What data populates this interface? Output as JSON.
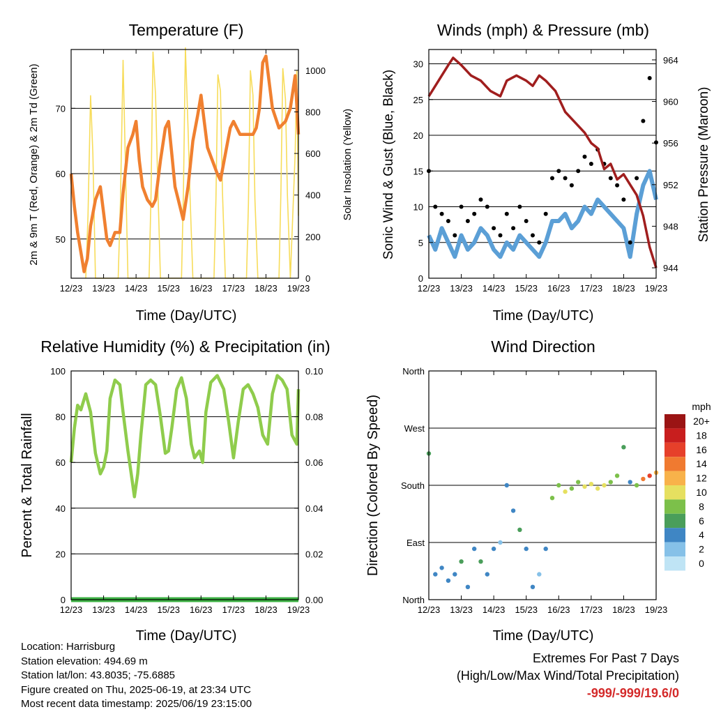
{
  "panels": {
    "temperature": {
      "title": "Temperature (F)",
      "ylabel_left": "2m & 9m T (Red, Orange) & 2m Td (Green)",
      "ylabel_right": "Solar Insolation (Yellow)",
      "xlabel": "Time (Day/UTC)"
    },
    "winds": {
      "title": "Winds (mph) & Pressure (mb)",
      "ylabel_left": "Sonic Wind & Gust (Blue, Black)",
      "ylabel_right": "Station Pressure (Maroon)",
      "xlabel": "Time (Day/UTC)"
    },
    "humidity": {
      "title": "Relative Humidity (%) & Precipitation (in)",
      "ylabel_left": "Percent & Total Rainfall",
      "xlabel": "Time (Day/UTC)"
    },
    "direction": {
      "title": "Wind Direction",
      "ylabel_left": "Direction (Colored By Speed)",
      "xlabel": "Time (Day/UTC)",
      "colorbar_title": "mph"
    }
  },
  "info": {
    "location": "Location: Harrisburg",
    "elevation": "Station elevation: 494.69 m",
    "latlon": "Station lat/lon: 43.8035; -75.6885",
    "created": "Figure created on Thu, 2025-06-19, at 23:34 UTC",
    "recent": "Most recent data timestamp: 2025/06/19 23:15:00"
  },
  "extremes": {
    "line1": "Extremes For Past 7 Days",
    "line2": "(High/Low/Max Wind/Total Precipitation)",
    "values": "-999/-999/19.6/0"
  },
  "colors": {
    "temp_9m": "#f08030",
    "solar": "#f7dc5a",
    "wind": "#5b9fd6",
    "gust": "#000000",
    "pressure": "#a01e1e",
    "rh": "#8fcc4c",
    "precip": "#3cb043",
    "speed_scale": [
      "#bfe4f5",
      "#86c1e8",
      "#3f86c4",
      "#4a9e5a",
      "#7cc04a",
      "#e6e060",
      "#f8b24a",
      "#f07a30",
      "#e6402a",
      "#c81e1e",
      "#9b1414"
    ]
  },
  "chart_data": [
    {
      "type": "line",
      "title": "Temperature (F)",
      "xlabel": "Time (Day/UTC)",
      "ylabel": "2m & 9m T (Red, Orange) & 2m Td (Green)",
      "ylabel_right": "Solar Insolation (Yellow)",
      "xticks": [
        "12/23",
        "13/23",
        "14/23",
        "15/23",
        "16/23",
        "17/23",
        "18/23",
        "19/23"
      ],
      "xlim": [
        12,
        19
      ],
      "ylim": [
        44,
        79
      ],
      "yticks": [
        50,
        60,
        70
      ],
      "ylim_right": [
        0,
        1100
      ],
      "yticks_right": [
        0,
        200,
        400,
        600,
        800,
        1000
      ],
      "series": [
        {
          "axis": "left",
          "x": [
            12.0,
            12.1,
            12.2,
            12.3,
            12.4,
            12.5,
            12.6,
            12.75,
            12.9,
            13.0,
            13.1,
            13.2,
            13.35,
            13.5,
            13.6,
            13.75,
            13.9,
            14.0,
            14.1,
            14.2,
            14.35,
            14.5,
            14.6,
            14.75,
            14.9,
            15.0,
            15.1,
            15.2,
            15.3,
            15.45,
            15.6,
            15.75,
            15.9,
            16.0,
            16.1,
            16.2,
            16.35,
            16.5,
            16.6,
            16.75,
            16.9,
            17.0,
            17.2,
            17.4,
            17.6,
            17.7,
            17.8,
            17.9,
            18.0,
            18.2,
            18.4,
            18.6,
            18.75,
            18.9,
            19.0
          ],
          "y": [
            60,
            55,
            51,
            48,
            45,
            47,
            52,
            56,
            58,
            54,
            50,
            49,
            51,
            51,
            57,
            64,
            66,
            68,
            62,
            58,
            56,
            55,
            56,
            62,
            67,
            68,
            63,
            58,
            56,
            53,
            58,
            65,
            69,
            72,
            68,
            64,
            62,
            60,
            59,
            63,
            67,
            68,
            66,
            66,
            66,
            67,
            70,
            77,
            78,
            70,
            67,
            68,
            70,
            75,
            66
          ]
        },
        {
          "axis": "right",
          "x": [
            12.45,
            12.52,
            12.6,
            12.67,
            12.75,
            13.45,
            13.52,
            13.6,
            13.67,
            13.75,
            14.4,
            14.46,
            14.52,
            14.6,
            14.66,
            14.75,
            15.4,
            15.46,
            15.52,
            15.6,
            15.66,
            15.75,
            16.4,
            16.46,
            16.52,
            16.6,
            16.66,
            16.75,
            17.4,
            17.46,
            17.52,
            17.6,
            17.66,
            17.75,
            18.4,
            18.46,
            18.52,
            18.6,
            18.66,
            18.75,
            18.9,
            18.95,
            19.0
          ],
          "y": [
            0,
            300,
            880,
            600,
            0,
            0,
            380,
            1050,
            560,
            0,
            0,
            400,
            1090,
            880,
            500,
            0,
            0,
            420,
            1110,
            720,
            400,
            0,
            0,
            380,
            980,
            900,
            420,
            0,
            0,
            360,
            1000,
            880,
            380,
            0,
            0,
            420,
            1010,
            860,
            400,
            0,
            600,
            1000,
            300
          ]
        }
      ]
    },
    {
      "type": "line",
      "title": "Winds (mph) & Pressure (mb)",
      "xlabel": "Time (Day/UTC)",
      "ylabel": "Sonic Wind & Gust (Blue, Black)",
      "ylabel_right": "Station Pressure (Maroon)",
      "xticks": [
        "12/23",
        "13/23",
        "14/23",
        "15/23",
        "16/23",
        "17/23",
        "18/23",
        "19/23"
      ],
      "xlim": [
        12,
        19
      ],
      "ylim": [
        0,
        32
      ],
      "yticks": [
        0,
        5,
        10,
        15,
        20,
        25,
        30
      ],
      "ylim_right": [
        943,
        965
      ],
      "yticks_right": [
        944,
        948,
        952,
        956,
        960,
        964
      ],
      "series": [
        {
          "axis": "left",
          "x": [
            12.0,
            12.2,
            12.4,
            12.6,
            12.8,
            13.0,
            13.2,
            13.4,
            13.6,
            13.8,
            14.0,
            14.2,
            14.4,
            14.6,
            14.8,
            15.0,
            15.2,
            15.4,
            15.6,
            15.8,
            16.0,
            16.2,
            16.4,
            16.6,
            16.8,
            17.0,
            17.2,
            17.4,
            17.6,
            17.8,
            18.0,
            18.2,
            18.4,
            18.6,
            18.8,
            19.0
          ],
          "y": [
            6,
            4,
            7,
            5,
            3,
            6,
            4,
            5,
            7,
            6,
            4,
            3,
            5,
            4,
            6,
            5,
            4,
            3,
            5,
            8,
            8,
            9,
            7,
            8,
            10,
            9,
            11,
            10,
            9,
            8,
            7,
            3,
            9,
            13,
            15,
            11
          ]
        },
        {
          "axis": "left",
          "x": [
            12.0,
            12.2,
            12.4,
            12.6,
            12.8,
            13.0,
            13.2,
            13.4,
            13.6,
            13.8,
            14.0,
            14.2,
            14.4,
            14.6,
            14.8,
            15.0,
            15.2,
            15.4,
            15.6,
            15.8,
            16.0,
            16.2,
            16.4,
            16.6,
            16.8,
            17.0,
            17.2,
            17.4,
            17.6,
            17.8,
            18.0,
            18.2,
            18.4,
            18.6,
            18.8,
            19.0
          ],
          "y": [
            15,
            10,
            9,
            8,
            6,
            10,
            8,
            9,
            11,
            10,
            7,
            6,
            9,
            7,
            10,
            8,
            6,
            5,
            9,
            14,
            15,
            14,
            13,
            15,
            17,
            16,
            18,
            16,
            14,
            13,
            11,
            5,
            14,
            22,
            28,
            19
          ]
        },
        {
          "axis": "right",
          "x": [
            12.0,
            12.3,
            12.6,
            12.75,
            13.0,
            13.3,
            13.6,
            13.9,
            14.2,
            14.4,
            14.7,
            15.0,
            15.2,
            15.4,
            15.6,
            15.9,
            16.2,
            16.5,
            16.8,
            17.0,
            17.2,
            17.4,
            17.6,
            17.8,
            18.0,
            18.2,
            18.4,
            18.6,
            18.8,
            19.0
          ],
          "y": [
            960.5,
            962,
            963.5,
            964.2,
            963.5,
            962.5,
            962,
            961,
            960.5,
            962,
            962.5,
            962,
            961.5,
            962.5,
            962,
            961,
            959,
            958,
            957,
            956,
            955.5,
            953.5,
            954,
            952.5,
            953,
            952,
            951,
            949,
            946,
            944
          ]
        }
      ]
    },
    {
      "type": "line",
      "title": "Relative Humidity (%) & Precipitation (in)",
      "xlabel": "Time (Day/UTC)",
      "ylabel": "Percent & Total Rainfall",
      "xticks": [
        "12/23",
        "13/23",
        "14/23",
        "15/23",
        "16/23",
        "17/23",
        "18/23",
        "19/23"
      ],
      "xlim": [
        12,
        19
      ],
      "ylim": [
        0,
        100
      ],
      "yticks": [
        0,
        20,
        40,
        60,
        80,
        100
      ],
      "ylim_right": [
        0,
        0.1
      ],
      "yticks_right": [
        "0.00",
        "0.02",
        "0.04",
        "0.06",
        "0.08",
        "0.10"
      ],
      "series": [
        {
          "axis": "left",
          "x": [
            12.0,
            12.1,
            12.2,
            12.3,
            12.45,
            12.6,
            12.75,
            12.9,
            13.0,
            13.1,
            13.2,
            13.35,
            13.5,
            13.6,
            13.75,
            13.85,
            13.95,
            14.05,
            14.15,
            14.3,
            14.45,
            14.6,
            14.75,
            14.9,
            15.0,
            15.1,
            15.25,
            15.4,
            15.55,
            15.7,
            15.8,
            15.95,
            16.05,
            16.15,
            16.3,
            16.5,
            16.7,
            16.85,
            17.0,
            17.15,
            17.3,
            17.45,
            17.6,
            17.75,
            17.9,
            18.05,
            18.2,
            18.35,
            18.5,
            18.65,
            18.8,
            18.95,
            19.0
          ],
          "y": [
            60,
            75,
            85,
            83,
            90,
            82,
            64,
            55,
            58,
            65,
            88,
            96,
            94,
            82,
            65,
            55,
            45,
            55,
            72,
            94,
            96,
            94,
            80,
            64,
            65,
            75,
            92,
            97,
            88,
            68,
            62,
            65,
            60,
            82,
            95,
            98,
            92,
            78,
            62,
            78,
            92,
            94,
            90,
            84,
            72,
            68,
            90,
            98,
            96,
            92,
            72,
            68,
            92
          ]
        },
        {
          "axis": "right",
          "x": [
            12.0,
            19.0
          ],
          "y": [
            0,
            0
          ]
        }
      ]
    },
    {
      "type": "scatter",
      "title": "Wind Direction",
      "xlabel": "Time (Day/UTC)",
      "ylabel": "Direction (Colored By Speed)",
      "xticks": [
        "12/23",
        "13/23",
        "14/23",
        "15/23",
        "16/23",
        "17/23",
        "18/23",
        "19/23"
      ],
      "xlim": [
        12,
        19
      ],
      "ylim": [
        0,
        360
      ],
      "yticks": [
        "North",
        "East",
        "South",
        "West",
        "North"
      ],
      "colorbar": {
        "title": "mph",
        "labels": [
          "0",
          "2",
          "4",
          "6",
          "8",
          "10",
          "12",
          "14",
          "16",
          "18",
          "20+"
        ]
      },
      "series": [
        {
          "x": [
            12.0,
            12.2,
            12.4,
            12.6,
            12.8,
            13.0,
            13.2,
            13.4,
            13.6,
            13.8,
            14.0,
            14.2,
            14.4,
            14.6,
            14.8,
            15.0,
            15.2,
            15.4,
            15.6,
            15.8,
            16.0,
            16.2,
            16.4,
            16.6,
            16.8,
            17.0,
            17.2,
            17.4,
            17.6,
            17.8,
            18.0,
            18.2,
            18.4,
            18.6,
            18.8,
            19.0
          ],
          "y": [
            230,
            40,
            50,
            30,
            40,
            60,
            20,
            80,
            60,
            40,
            80,
            90,
            180,
            140,
            110,
            80,
            20,
            40,
            80,
            160,
            180,
            170,
            175,
            185,
            178,
            182,
            175,
            180,
            185,
            195,
            240,
            185,
            180,
            190,
            195,
            200
          ],
          "speed": [
            6,
            3,
            4,
            4,
            3,
            5,
            3,
            4,
            5,
            4,
            3,
            2,
            4,
            3,
            5,
            3,
            3,
            2,
            4,
            7,
            8,
            9,
            7,
            8,
            10,
            9,
            10,
            9,
            8,
            7,
            6,
            3,
            8,
            13,
            15,
            12
          ]
        }
      ]
    }
  ]
}
